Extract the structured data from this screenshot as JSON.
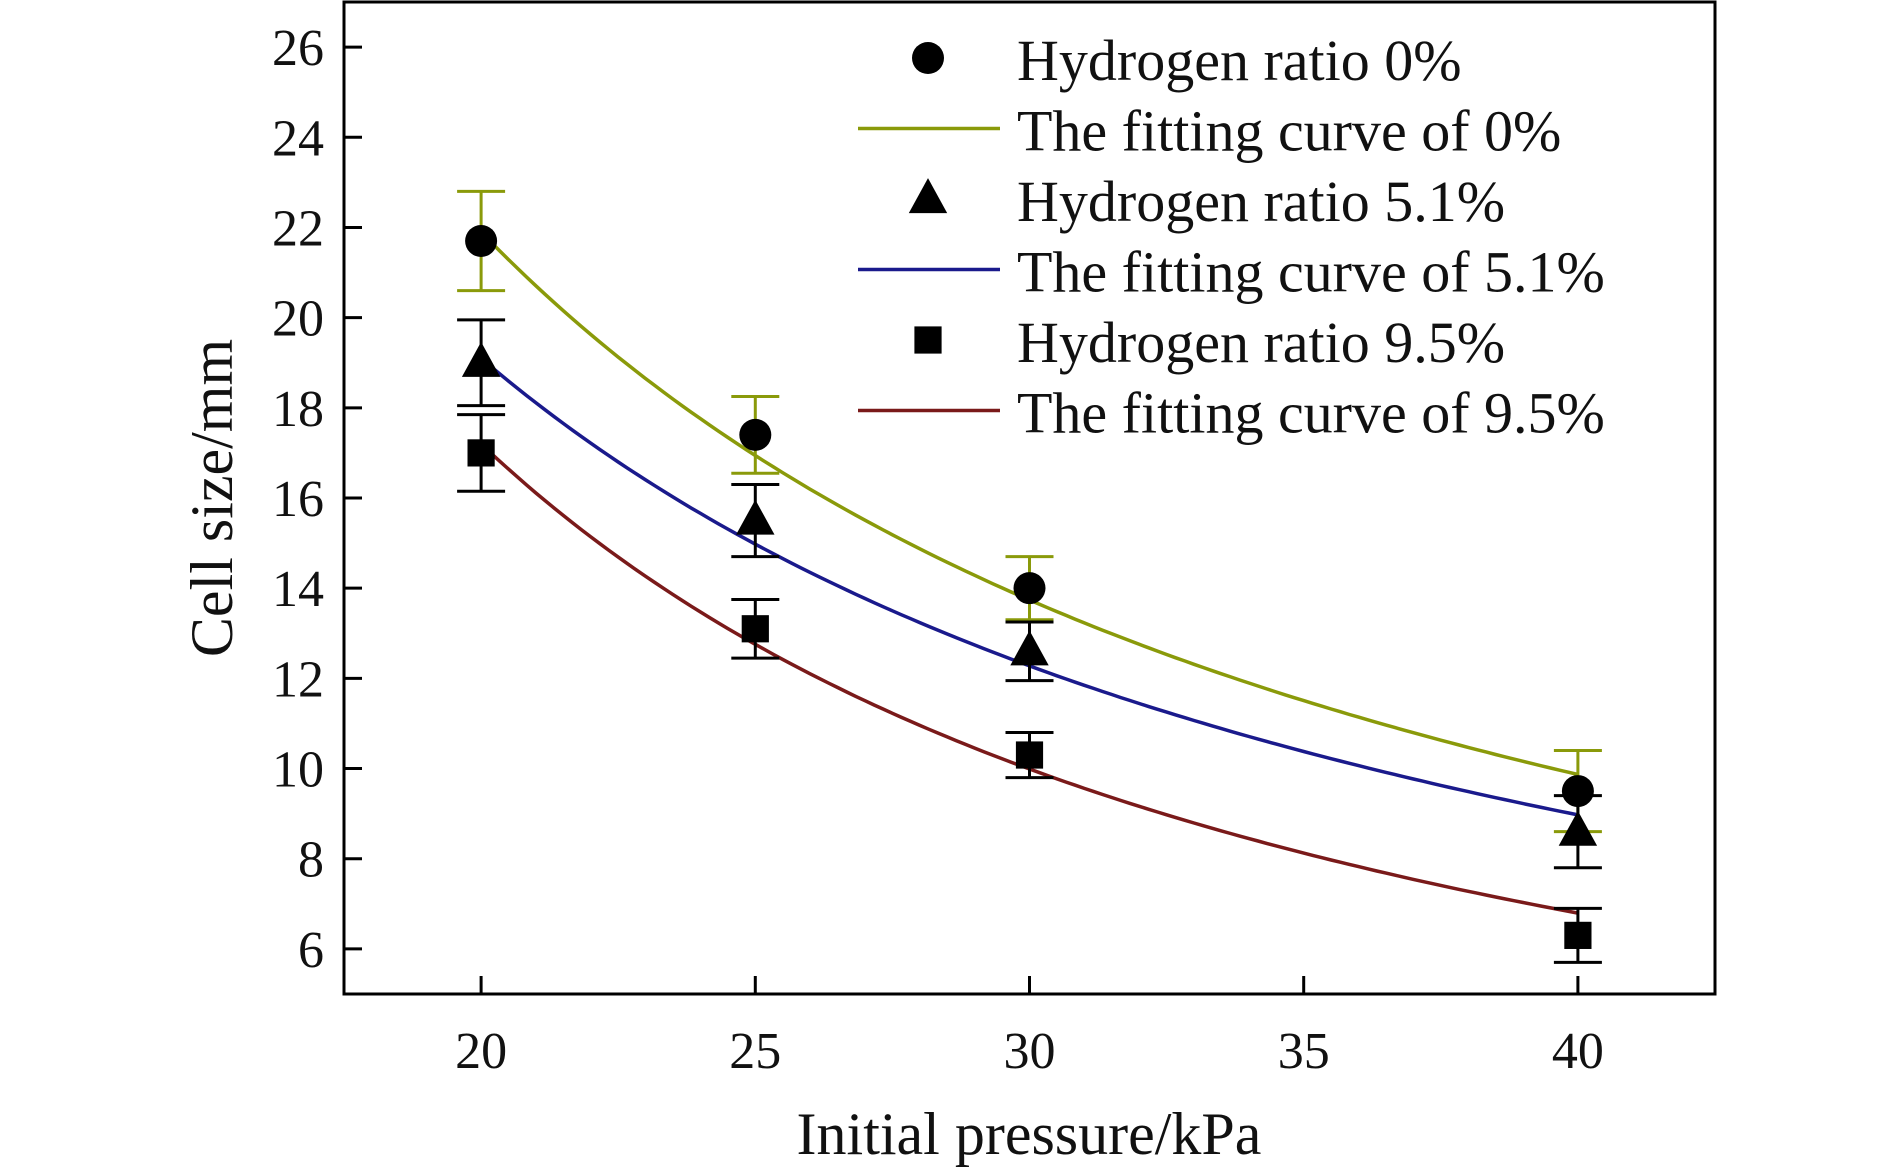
{
  "chart_data": {
    "type": "scatter",
    "title": "",
    "xlabel": "Initial pressure/kPa",
    "ylabel": "Cell size/mm",
    "xlim": [
      17.5,
      42.5
    ],
    "ylim": [
      5,
      27
    ],
    "xticks": [
      20,
      25,
      30,
      35,
      40
    ],
    "yticks": [
      6,
      8,
      10,
      12,
      14,
      16,
      18,
      20,
      22,
      24,
      26
    ],
    "grid": false,
    "legend_position": "top-right",
    "series": [
      {
        "name": "Hydrogen ratio 0%",
        "kind": "points",
        "marker": "circle",
        "color": "#000000",
        "errorbar_color": "#8a9a0a",
        "x": [
          20,
          25,
          30,
          40
        ],
        "y": [
          21.7,
          17.4,
          14.0,
          9.5
        ],
        "error": [
          1.1,
          0.85,
          0.7,
          0.9
        ]
      },
      {
        "name": "The fitting curve of 0%",
        "kind": "curve",
        "color": "#8a9a0a",
        "fit": {
          "model": "power",
          "a": 21.9,
          "b": -1.15,
          "x0": 20
        },
        "x_range": [
          20,
          40
        ]
      },
      {
        "name": "Hydrogen ratio 5.1%",
        "kind": "points",
        "marker": "triangle",
        "color": "#000000",
        "errorbar_color": "#000000",
        "x": [
          20,
          25,
          30,
          40
        ],
        "y": [
          19.0,
          15.5,
          12.6,
          8.6
        ],
        "error": [
          0.95,
          0.8,
          0.65,
          0.8
        ]
      },
      {
        "name": "The fitting curve of 5.1%",
        "kind": "curve",
        "color": "#1a1a8c",
        "fit": {
          "model": "power",
          "a": 19.1,
          "b": -1.09,
          "x0": 20
        },
        "x_range": [
          20,
          40
        ]
      },
      {
        "name": "Hydrogen ratio 9.5%",
        "kind": "points",
        "marker": "square",
        "color": "#000000",
        "errorbar_color": "#000000",
        "x": [
          20,
          25,
          30,
          40
        ],
        "y": [
          17.0,
          13.1,
          10.3,
          6.3
        ],
        "error": [
          0.85,
          0.65,
          0.5,
          0.6
        ]
      },
      {
        "name": "The fitting curve of 9.5%",
        "kind": "curve",
        "color": "#7a1a1a",
        "fit": {
          "model": "power",
          "a": 17.2,
          "b": -1.34,
          "x0": 20
        },
        "x_range": [
          20,
          40
        ]
      }
    ]
  }
}
